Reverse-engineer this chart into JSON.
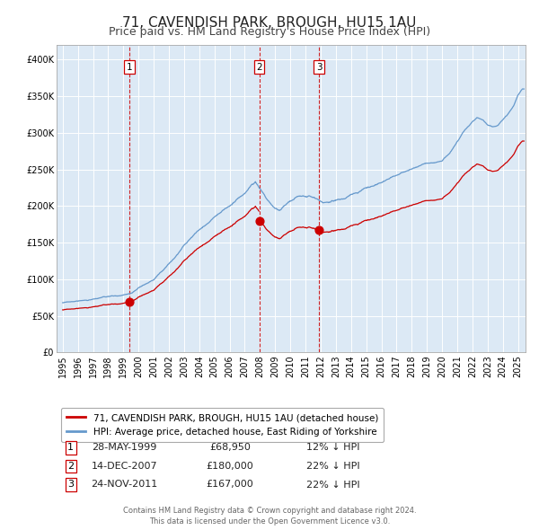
{
  "title": "71, CAVENDISH PARK, BROUGH, HU15 1AU",
  "subtitle": "Price paid vs. HM Land Registry's House Price Index (HPI)",
  "legend_line1": "71, CAVENDISH PARK, BROUGH, HU15 1AU (detached house)",
  "legend_line2": "HPI: Average price, detached house, East Riding of Yorkshire",
  "transaction_labels": [
    {
      "num": "1",
      "date": "28-MAY-1999",
      "price": "£68,950",
      "pct": "12% ↓ HPI"
    },
    {
      "num": "2",
      "date": "14-DEC-2007",
      "price": "£180,000",
      "pct": "22% ↓ HPI"
    },
    {
      "num": "3",
      "date": "24-NOV-2011",
      "price": "£167,000",
      "pct": "22% ↓ HPI"
    }
  ],
  "transaction_dates": [
    1999.41,
    2007.95,
    2011.9
  ],
  "transaction_prices": [
    68950,
    180000,
    167000
  ],
  "ylim": [
    0,
    420000
  ],
  "yticks": [
    0,
    50000,
    100000,
    150000,
    200000,
    250000,
    300000,
    350000,
    400000
  ],
  "ytick_labels": [
    "£0",
    "£50K",
    "£100K",
    "£150K",
    "£200K",
    "£250K",
    "£300K",
    "£350K",
    "£400K"
  ],
  "xlim_start": 1994.6,
  "xlim_end": 2025.5,
  "xticks": [
    1995,
    1996,
    1997,
    1998,
    1999,
    2000,
    2001,
    2002,
    2003,
    2004,
    2005,
    2006,
    2007,
    2008,
    2009,
    2010,
    2011,
    2012,
    2013,
    2014,
    2015,
    2016,
    2017,
    2018,
    2019,
    2020,
    2021,
    2022,
    2023,
    2024,
    2025
  ],
  "hpi_color": "#6699cc",
  "price_color": "#cc0000",
  "dashed_color": "#cc0000",
  "plot_bg_color": "#dce9f5",
  "grid_color": "#ffffff",
  "title_fontsize": 11,
  "subtitle_fontsize": 9,
  "tick_fontsize": 7,
  "legend_fontsize": 7.5,
  "table_fontsize": 8,
  "footnote_fontsize": 6,
  "footnote": "Contains HM Land Registry data © Crown copyright and database right 2024.\nThis data is licensed under the Open Government Licence v3.0."
}
